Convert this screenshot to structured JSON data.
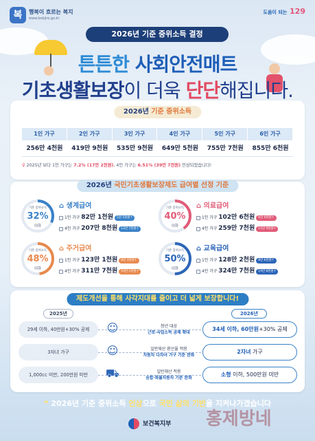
{
  "logos": {
    "left_name": "행복이 흐르는 복지",
    "left_url": "www.bokjiro.go.kr",
    "left_mark": "복지로",
    "right_prefix": "도움이 되는",
    "right_number": "129"
  },
  "header": {
    "badge": "2026년 기준 중위소득 결정",
    "title1_a": "튼튼한 ",
    "title1_b": "사회안전매트",
    "title2_a": "기초생활보장",
    "title2_b": "이 더욱 ",
    "title2_c": "단단",
    "title2_d": "해집니다."
  },
  "median": {
    "section_a": "2026년 ",
    "section_b": "기준 중위소득",
    "households": [
      {
        "label": "1인 가구",
        "value": "256만 4천원"
      },
      {
        "label": "2인 가구",
        "value": "419만 9천원"
      },
      {
        "label": "3인 가구",
        "value": "535만 9천원"
      },
      {
        "label": "4인 가구",
        "value": "649만 5천원"
      },
      {
        "label": "5인 가구",
        "value": "755만 7천원"
      },
      {
        "label": "6인 가구",
        "value": "855만 6천원"
      }
    ],
    "note_a": "2025년 보다 1인 가구는 ",
    "note_b": "7.2% (17만 2천원)",
    "note_c": ", 4인 가구는 ",
    "note_d": "6.51% (39만 7천원)",
    "note_e": " 인상되었습니다!"
  },
  "benefits": {
    "section_a": "2026년 ",
    "section_b": "국민기초생활보장제도 급여별 선정 기준",
    "ring_label": "기준 중위소득",
    "ring_below": "이하",
    "items": [
      {
        "name": "생계급여",
        "pct": "32%",
        "fraction": 0.32,
        "color": "#3b82c8",
        "row1_k": "1인 가구",
        "row1_v": "82만 1천원",
        "row1_t": "5만 5천원↑",
        "row2_k": "4인 가구",
        "row2_v": "207만 8천원",
        "row2_t": "12만 7천원↑"
      },
      {
        "name": "의료급여",
        "pct": "40%",
        "fraction": 0.4,
        "color": "#e05c78",
        "row1_k": "1인 가구",
        "row1_v": "102만 6천원",
        "row1_t": "6만 9천원↑",
        "row2_k": "4인 가구",
        "row2_v": "259만 7천원",
        "row2_t": "15만 9천원↑"
      },
      {
        "name": "주거급여",
        "pct": "48%",
        "fraction": 0.48,
        "color": "#e88a4f",
        "row1_k": "1인 가구",
        "row1_v": "123만 1천원",
        "row1_t": "8만 3천원↑",
        "row2_k": "4인 가구",
        "row2_v": "311만 7천원",
        "row2_t": "19만 1천원↑"
      },
      {
        "name": "교육급여",
        "pct": "50%",
        "fraction": 0.5,
        "color": "#2d66b8",
        "row1_k": "1인 가구",
        "row1_v": "128만 2천원",
        "row1_t": "8만 6천원↑",
        "row2_k": "4인 가구",
        "row2_v": "324만 7천원",
        "row2_t": "19만 8천원↑"
      }
    ]
  },
  "improve": {
    "section_a": "제도개선을 통해 ",
    "section_b": "사각지대를 줄이고",
    "section_c": " 더 넓게 보장합니다!",
    "year_old": "2025년",
    "year_new": "2026년",
    "rows": [
      {
        "old": "29세 이하, 40만원+30% 공제",
        "mid1": "청년 대상",
        "mid2": "근로·사업소득 공제 확대",
        "new_a": "34세 이하, 60만원",
        "new_b": "+30% 공제"
      },
      {
        "old": "3자녀 가구",
        "mid1": "일반재산 환산율 적용",
        "mid2": "자동차 다자녀 가구 기준 완화",
        "new_a": "2자녀",
        "new_b": " 가구"
      },
      {
        "old": "1,000cc 미만, 200만원 미만",
        "mid1": "일반재산 적용",
        "mid2": "승합·화물자동차 기준 완화",
        "new_a": "소형",
        "new_b": " 이하, 500만원 미만"
      }
    ]
  },
  "footer": {
    "text_a": "2026년 기준 중위소득 ",
    "text_b": "인상",
    "text_c": "으로 ",
    "text_d": "국민 삶의 기반",
    "text_e": "을 지켜나가겠습니다",
    "ministry": "보건복지부",
    "watermark": "홍제방네"
  }
}
